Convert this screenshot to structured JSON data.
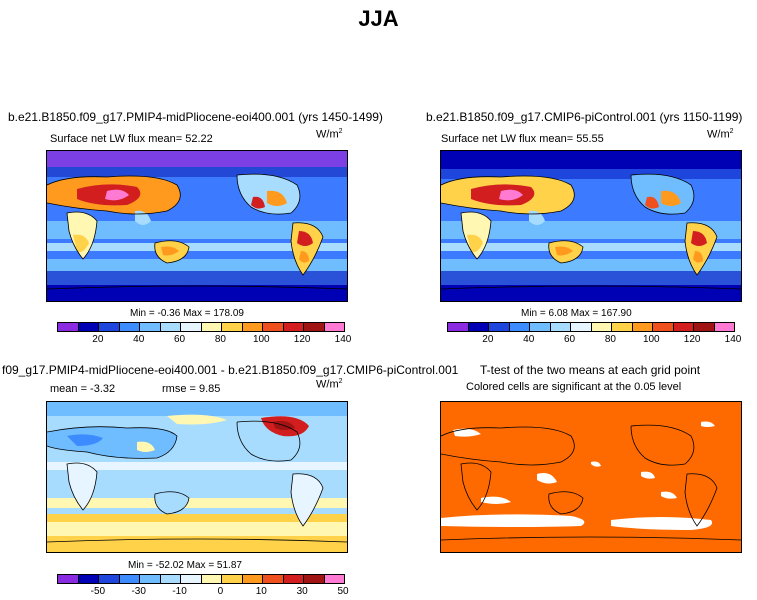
{
  "figure": {
    "title": "JJA"
  },
  "panels": {
    "p1": {
      "title": "b.e21.B1850.f09_g17.PMIP4-midPliocene-eoi400.001 (yrs 1450-1499)",
      "subtitle": "Surface net LW flux mean=   52.22",
      "units": "W/m",
      "units_sup": "2",
      "minmax": "Min =  -0.36  Max = 178.09"
    },
    "p2": {
      "title": "b.e21.B1850.f09_g17.CMIP6-piControl.001 (yrs 1150-1199)",
      "subtitle": "Surface net LW flux mean=   55.55",
      "units": "W/m",
      "units_sup": "2",
      "minmax": "Min =   6.08  Max = 167.90"
    },
    "p3": {
      "title": "f09_g17.PMIP4-midPliocene-eoi400.001 - b.e21.B1850.f09_g17.CMIP6-piControl.001",
      "subtitle_mean": "mean =   -3.32",
      "subtitle_rmse": "rmse =    9.85",
      "units": "W/m",
      "units_sup": "2",
      "minmax": "Min = -52.02  Max =  51.87"
    },
    "p4": {
      "title": "T-test of the two means at each grid point",
      "subtitle": "Colored cells are significant at the 0.05 level",
      "significant_color": "#ff6a00"
    }
  },
  "colorbars": {
    "absolute": {
      "colors": [
        "#8a2be2",
        "#0000b4",
        "#1e46dc",
        "#3c8cff",
        "#6fbcff",
        "#a8dcff",
        "#e6f5ff",
        "#fff7b2",
        "#ffd24a",
        "#ff9a1e",
        "#f0501e",
        "#d21e1e",
        "#a01414",
        "#ff7ad2"
      ],
      "labels": [
        "20",
        "40",
        "60",
        "80",
        "100",
        "120",
        "140"
      ]
    },
    "difference": {
      "colors": [
        "#8a2be2",
        "#0000b4",
        "#1e46dc",
        "#3c8cff",
        "#6fbcff",
        "#a8dcff",
        "#e6f5ff",
        "#fff7b2",
        "#ffd24a",
        "#ff9a1e",
        "#f0501e",
        "#d21e1e",
        "#a01414",
        "#ff7ad2"
      ],
      "labels": [
        "-50",
        "-30",
        "-10",
        "0",
        "10",
        "30",
        "50"
      ]
    }
  }
}
